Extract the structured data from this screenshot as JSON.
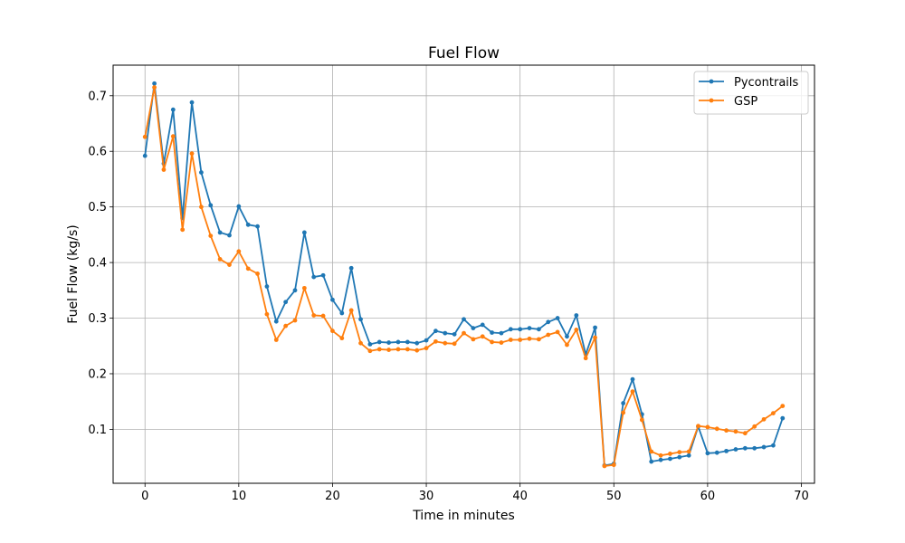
{
  "chart_data": {
    "type": "line",
    "title": "Fuel Flow",
    "xlabel": "Time in minutes",
    "ylabel": "Fuel Flow (kg/s)",
    "xlim": [
      -3.4,
      71.4
    ],
    "ylim": [
      0.003,
      0.755
    ],
    "xticks": [
      0,
      10,
      20,
      30,
      40,
      50,
      60,
      70
    ],
    "xtick_labels": [
      "0",
      "10",
      "20",
      "30",
      "40",
      "50",
      "60",
      "70"
    ],
    "yticks": [
      0.1,
      0.2,
      0.3,
      0.4,
      0.5,
      0.6,
      0.7
    ],
    "ytick_labels": [
      "0.1",
      "0.2",
      "0.3",
      "0.4",
      "0.5",
      "0.6",
      "0.7"
    ],
    "grid": true,
    "legend_position": "top-right",
    "x": [
      0,
      1,
      2,
      3,
      4,
      5,
      6,
      7,
      8,
      9,
      10,
      11,
      12,
      13,
      14,
      15,
      16,
      17,
      18,
      19,
      20,
      21,
      22,
      23,
      24,
      25,
      26,
      27,
      28,
      29,
      30,
      31,
      32,
      33,
      34,
      35,
      36,
      37,
      38,
      39,
      40,
      41,
      42,
      43,
      44,
      45,
      46,
      47,
      48,
      49,
      50,
      51,
      52,
      53,
      54,
      55,
      56,
      57,
      58,
      59,
      60,
      61,
      62,
      63,
      64,
      65,
      66,
      67,
      68
    ],
    "series": [
      {
        "name": "Pycontrails",
        "color": "#1f77b4",
        "values": [
          0.592,
          0.722,
          0.578,
          0.675,
          0.48,
          0.688,
          0.562,
          0.503,
          0.454,
          0.449,
          0.501,
          0.468,
          0.465,
          0.357,
          0.294,
          0.329,
          0.35,
          0.454,
          0.374,
          0.377,
          0.333,
          0.309,
          0.39,
          0.298,
          0.253,
          0.257,
          0.256,
          0.257,
          0.257,
          0.255,
          0.26,
          0.277,
          0.273,
          0.271,
          0.298,
          0.282,
          0.288,
          0.274,
          0.273,
          0.28,
          0.28,
          0.282,
          0.28,
          0.293,
          0.3,
          0.267,
          0.305,
          0.235,
          0.283,
          0.035,
          0.038,
          0.147,
          0.19,
          0.127,
          0.042,
          0.045,
          0.047,
          0.05,
          0.053,
          0.105,
          0.057,
          0.058,
          0.061,
          0.064,
          0.066,
          0.066,
          0.068,
          0.071,
          0.12
        ]
      },
      {
        "name": "GSP",
        "color": "#ff7f0e",
        "values": [
          0.626,
          0.715,
          0.567,
          0.627,
          0.459,
          0.596,
          0.5,
          0.448,
          0.406,
          0.396,
          0.42,
          0.389,
          0.38,
          0.307,
          0.261,
          0.286,
          0.296,
          0.354,
          0.305,
          0.304,
          0.277,
          0.264,
          0.314,
          0.255,
          0.241,
          0.244,
          0.243,
          0.244,
          0.244,
          0.242,
          0.246,
          0.258,
          0.255,
          0.254,
          0.273,
          0.262,
          0.267,
          0.257,
          0.256,
          0.261,
          0.261,
          0.263,
          0.262,
          0.27,
          0.275,
          0.252,
          0.279,
          0.228,
          0.265,
          0.034,
          0.036,
          0.13,
          0.168,
          0.117,
          0.06,
          0.053,
          0.056,
          0.059,
          0.06,
          0.106,
          0.104,
          0.101,
          0.098,
          0.096,
          0.093,
          0.105,
          0.118,
          0.129,
          0.142
        ]
      }
    ]
  }
}
